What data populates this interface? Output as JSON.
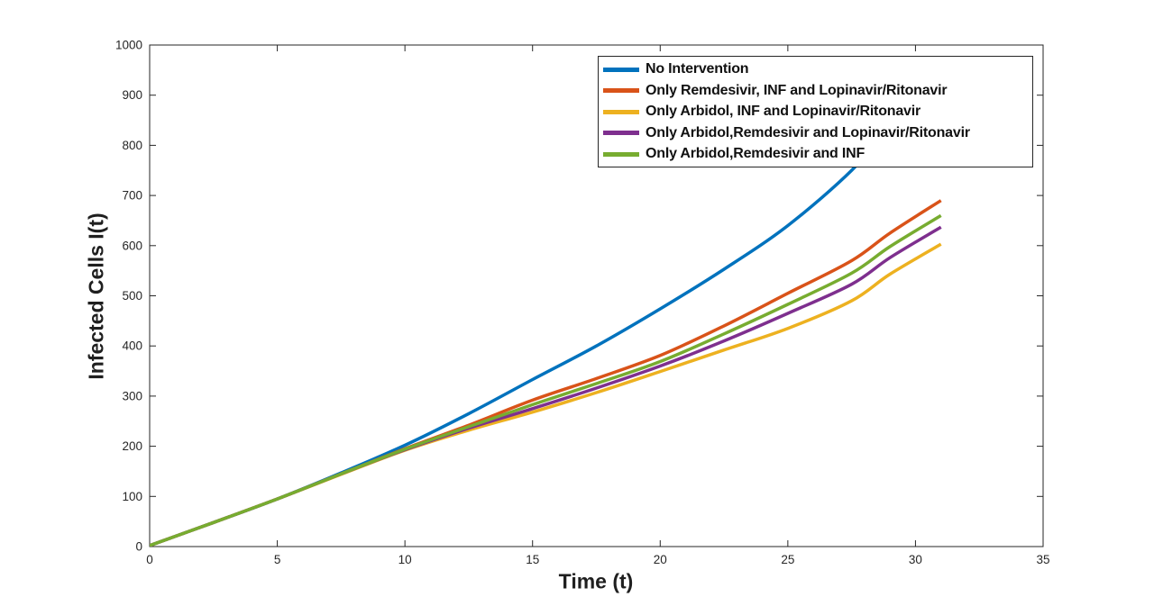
{
  "figure": {
    "background": "#ffffff"
  },
  "chart_data": {
    "type": "line",
    "title": "",
    "xlabel": "Time (t)",
    "ylabel": "Infected Cells I(t)",
    "xlim": [
      0,
      35
    ],
    "ylim": [
      0,
      1000
    ],
    "x_ticks": [
      "0",
      "5",
      "10",
      "15",
      "20",
      "25",
      "30",
      "35"
    ],
    "x_tick_values": [
      0,
      5,
      10,
      15,
      20,
      25,
      30,
      35
    ],
    "y_ticks": [
      "0",
      "100",
      "200",
      "300",
      "400",
      "500",
      "600",
      "700",
      "800",
      "900",
      "1000"
    ],
    "y_tick_values": [
      0,
      100,
      200,
      300,
      400,
      500,
      600,
      700,
      800,
      900,
      1000
    ],
    "grid": false,
    "box": true,
    "axis_color": "#262626",
    "line_width": 3.5,
    "legend": {
      "position": "northeast-inside",
      "border_color": "#262626",
      "background": "#ffffff"
    },
    "x": [
      0,
      2.5,
      5,
      7.5,
      10,
      12.5,
      15,
      17.5,
      20,
      22.5,
      25,
      27.5,
      29,
      31
    ],
    "series": [
      {
        "name": "No Intervention",
        "color": "#0072BD",
        "values": [
          2,
          48,
          95,
          147,
          202,
          265,
          333,
          400,
          474,
          553,
          640,
          750,
          840,
          960
        ]
      },
      {
        "name": "Only Remdesivir, INF and Lopinavir/Ritonavir",
        "color": "#D95319",
        "values": [
          2,
          48,
          95,
          145,
          195,
          242,
          292,
          335,
          381,
          440,
          505,
          570,
          625,
          690
        ]
      },
      {
        "name": "Only Arbidol, INF and Lopinavir/Ritonavir",
        "color": "#EDB120",
        "values": [
          2,
          48,
          95,
          144,
          192,
          232,
          268,
          307,
          349,
          392,
          435,
          490,
          543,
          603
        ]
      },
      {
        "name": "Only Arbidol,Remdesivir and Lopinavir/Ritonavir",
        "color": "#7E2F8E",
        "values": [
          2,
          48,
          95,
          145,
          193,
          236,
          275,
          316,
          360,
          410,
          465,
          523,
          576,
          637
        ]
      },
      {
        "name": "Only Arbidol,Remdesivir and INF",
        "color": "#77AC30",
        "values": [
          2,
          48,
          95,
          145,
          194,
          239,
          283,
          325,
          369,
          424,
          483,
          545,
          598,
          660
        ]
      }
    ]
  }
}
